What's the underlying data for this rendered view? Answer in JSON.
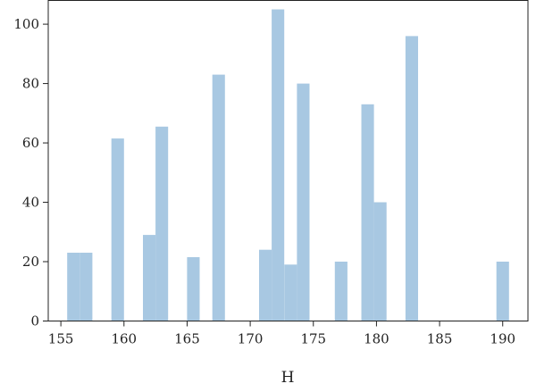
{
  "chart_data": {
    "type": "bar",
    "subtype": "histogram",
    "title": "",
    "xlabel": "H",
    "ylabel": "",
    "xlim": [
      154,
      192
    ],
    "ylim": [
      0,
      108
    ],
    "xticks": [
      155,
      160,
      165,
      170,
      175,
      180,
      185,
      190
    ],
    "yticks": [
      0,
      20,
      40,
      60,
      80,
      100
    ],
    "bar_color": "#a8c8e2",
    "grid": false,
    "bins": [
      {
        "x0": 155.5,
        "x1": 156.5,
        "value": 23
      },
      {
        "x0": 156.5,
        "x1": 157.5,
        "value": 23
      },
      {
        "x0": 159.0,
        "x1": 160.0,
        "value": 61.5
      },
      {
        "x0": 161.5,
        "x1": 162.5,
        "value": 29
      },
      {
        "x0": 162.5,
        "x1": 163.5,
        "value": 65.5
      },
      {
        "x0": 165.0,
        "x1": 166.0,
        "value": 21.5
      },
      {
        "x0": 167.0,
        "x1": 168.0,
        "value": 83
      },
      {
        "x0": 170.7,
        "x1": 171.7,
        "value": 24
      },
      {
        "x0": 171.7,
        "x1": 172.7,
        "value": 105
      },
      {
        "x0": 172.7,
        "x1": 173.7,
        "value": 19
      },
      {
        "x0": 173.7,
        "x1": 174.7,
        "value": 80
      },
      {
        "x0": 176.7,
        "x1": 177.7,
        "value": 20
      },
      {
        "x0": 178.8,
        "x1": 179.8,
        "value": 73
      },
      {
        "x0": 179.8,
        "x1": 180.8,
        "value": 40
      },
      {
        "x0": 182.3,
        "x1": 183.3,
        "value": 96
      },
      {
        "x0": 189.5,
        "x1": 190.5,
        "value": 20
      }
    ]
  }
}
